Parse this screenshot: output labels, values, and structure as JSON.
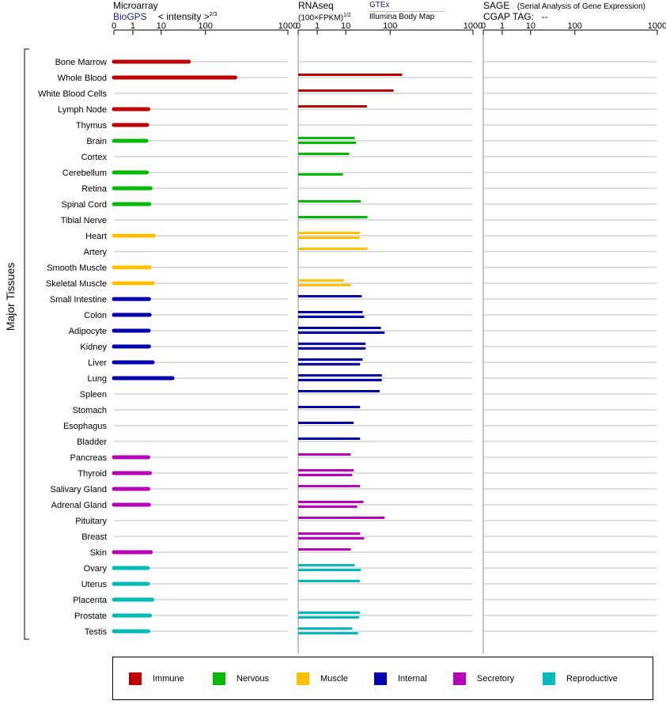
{
  "panels": {
    "microarray": {
      "title": "Microarray",
      "source": "BioGPS",
      "scale_label": "< intensity >",
      "scale_exponent": "2/3",
      "ticks": [
        "0",
        "1",
        "10",
        "100",
        "1000"
      ]
    },
    "rnaseq": {
      "title": "RNAseq",
      "scale_label": "(100×FPKM)",
      "scale_exponent": "1/2",
      "source_1": "GTEx",
      "source_2": "Illumina Body Map",
      "ticks": [
        "0",
        "1",
        "10",
        "100",
        "1000"
      ]
    },
    "sage": {
      "title": "SAGE",
      "subtitle": "(Serial Analysis of Gene Expression)",
      "cgap_label": "CGAP TAG:",
      "cgap_value": "--",
      "ticks": [
        "0",
        "1",
        "10",
        "100",
        "1000"
      ]
    }
  },
  "group_label": "Major Tissues",
  "colors": {
    "Immune": "#c00000",
    "Nervous": "#00bb00",
    "Muscle": "#ffc000",
    "Internal": "#0000b0",
    "Secretory": "#bb00bb",
    "Reproductive": "#00bbbb"
  },
  "legend": [
    {
      "label": "Immune",
      "category": "Immune"
    },
    {
      "label": "Nervous",
      "category": "Nervous"
    },
    {
      "label": "Muscle",
      "category": "Muscle"
    },
    {
      "label": "Internal",
      "category": "Internal"
    },
    {
      "label": "Secretory",
      "category": "Secretory"
    },
    {
      "label": "Reproductive",
      "category": "Reproductive"
    }
  ],
  "chart_data": {
    "type": "bar",
    "orientation": "horizontal",
    "scale_ticks": [
      0,
      1,
      10,
      100,
      1000
    ],
    "categories": [
      "Bone Marrow",
      "Whole Blood",
      "White Blood Cells",
      "Lymph Node",
      "Thymus",
      "Brain",
      "Cortex",
      "Cerebellum",
      "Retina",
      "Spinal Cord",
      "Tibial Nerve",
      "Heart",
      "Artery",
      "Smooth Muscle",
      "Skeletal Muscle",
      "Small Intestine",
      "Colon",
      "Adipocyte",
      "Kidney",
      "Liver",
      "Lung",
      "Spleen",
      "Stomach",
      "Esophagus",
      "Bladder",
      "Pancreas",
      "Thyroid",
      "Salivary Gland",
      "Adrenal Gland",
      "Pituitary",
      "Breast",
      "Skin",
      "Ovary",
      "Uterus",
      "Placenta",
      "Prostate",
      "Testis"
    ],
    "tissue_category": [
      "Immune",
      "Immune",
      "Immune",
      "Immune",
      "Immune",
      "Nervous",
      "Nervous",
      "Nervous",
      "Nervous",
      "Nervous",
      "Nervous",
      "Muscle",
      "Muscle",
      "Muscle",
      "Muscle",
      "Internal",
      "Internal",
      "Internal",
      "Internal",
      "Internal",
      "Internal",
      "Internal",
      "Internal",
      "Internal",
      "Internal",
      "Secretory",
      "Secretory",
      "Secretory",
      "Secretory",
      "Secretory",
      "Secretory",
      "Secretory",
      "Reproductive",
      "Reproductive",
      "Reproductive",
      "Reproductive",
      "Reproductive"
    ],
    "microarray": [
      42,
      230,
      null,
      3.5,
      3.2,
      3.0,
      null,
      3.1,
      4.2,
      3.8,
      null,
      5.5,
      null,
      3.9,
      5.0,
      3.7,
      3.9,
      3.6,
      3.7,
      5.0,
      18,
      null,
      null,
      null,
      null,
      3.5,
      4.0,
      3.5,
      3.7,
      null,
      null,
      4.3,
      3.4,
      3.4,
      4.8,
      4.0,
      3.5
    ],
    "rnaseq_gtex": [
      null,
      140,
      110,
      30,
      null,
      16,
      12,
      null,
      null,
      22,
      31,
      21,
      31,
      null,
      8.5,
      23,
      24,
      62,
      28,
      24,
      65,
      58,
      21,
      15,
      21,
      13,
      15,
      21,
      25,
      75,
      21,
      13,
      16,
      21,
      null,
      21,
      14
    ],
    "rnaseq_ibm": [
      null,
      null,
      null,
      null,
      null,
      17,
      null,
      8,
      null,
      null,
      null,
      21,
      null,
      null,
      13,
      null,
      26,
      75,
      28,
      21,
      65,
      null,
      null,
      null,
      null,
      null,
      14,
      null,
      18,
      null,
      26,
      null,
      22,
      null,
      null,
      20,
      19
    ],
    "sage": []
  }
}
